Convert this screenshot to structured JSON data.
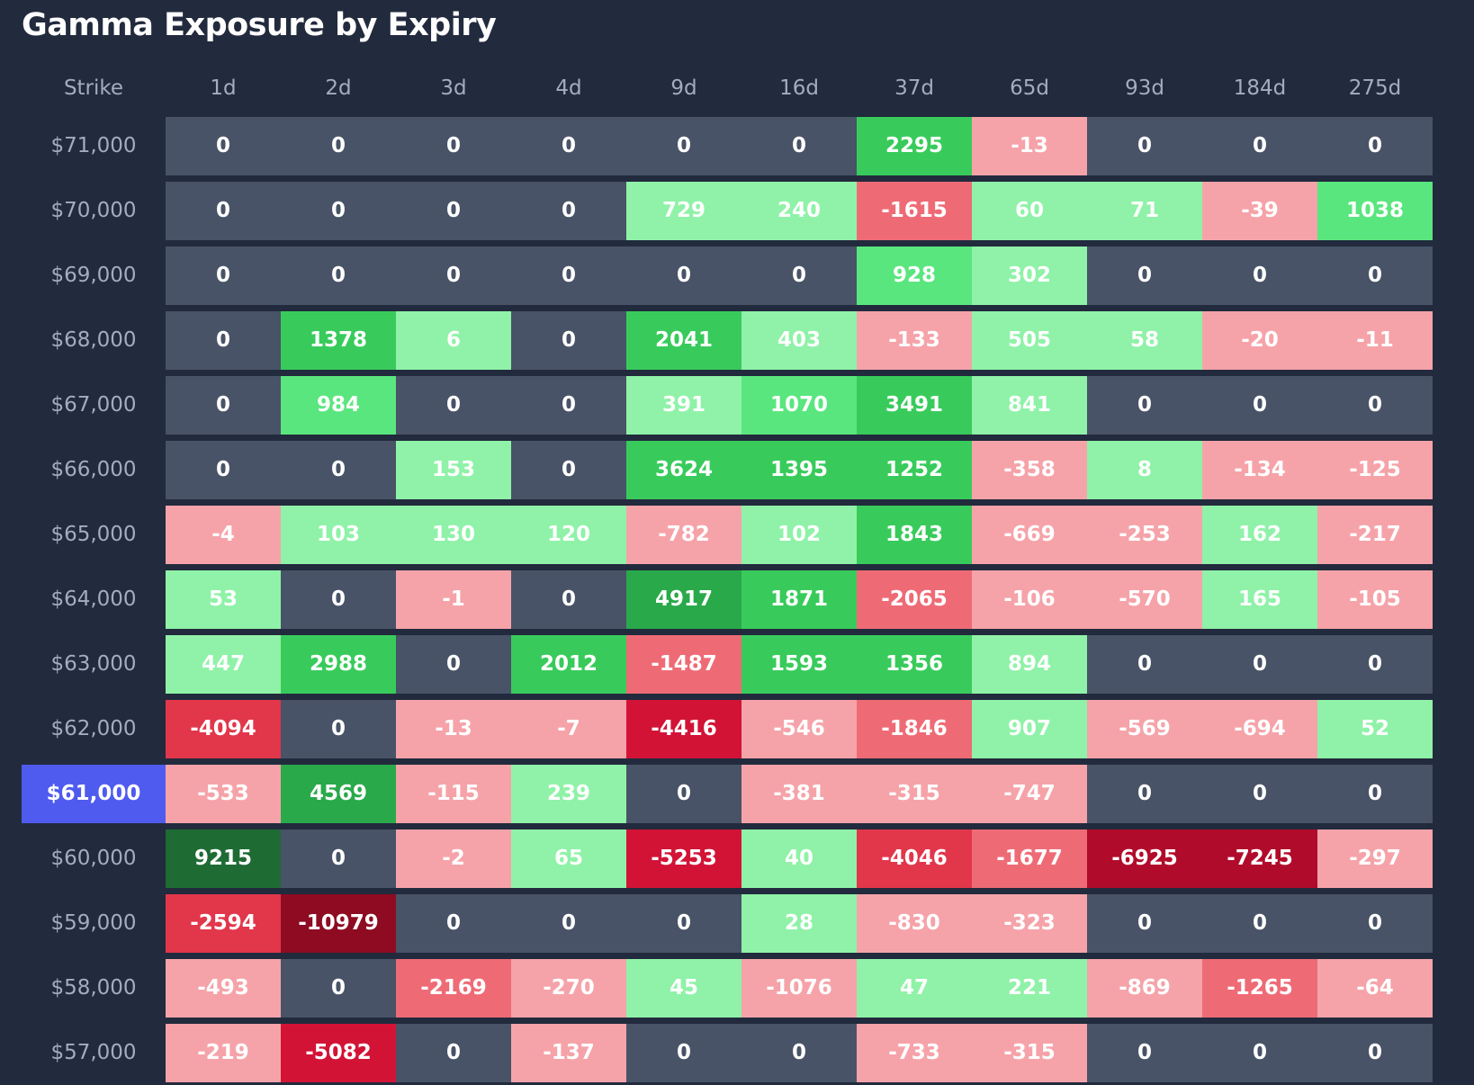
{
  "title": "Gamma Exposure by Expiry",
  "table": {
    "strike_header": "Strike",
    "columns": [
      "1d",
      "2d",
      "3d",
      "4d",
      "9d",
      "16d",
      "37d",
      "65d",
      "93d",
      "184d",
      "275d"
    ],
    "rows": [
      {
        "strike": "$71,000",
        "cells": [
          0,
          0,
          0,
          0,
          0,
          0,
          2295,
          -13,
          0,
          0,
          0
        ]
      },
      {
        "strike": "$70,000",
        "cells": [
          0,
          0,
          0,
          0,
          729,
          240,
          -1615,
          60,
          71,
          -39,
          1038
        ]
      },
      {
        "strike": "$69,000",
        "cells": [
          0,
          0,
          0,
          0,
          0,
          0,
          928,
          302,
          0,
          0,
          0
        ]
      },
      {
        "strike": "$68,000",
        "cells": [
          0,
          1378,
          6,
          0,
          2041,
          403,
          -133,
          505,
          58,
          -20,
          -11
        ]
      },
      {
        "strike": "$67,000",
        "cells": [
          0,
          984,
          0,
          0,
          391,
          1070,
          3491,
          841,
          0,
          0,
          0
        ]
      },
      {
        "strike": "$66,000",
        "cells": [
          0,
          0,
          153,
          0,
          3624,
          1395,
          1252,
          -358,
          8,
          -134,
          -125
        ]
      },
      {
        "strike": "$65,000",
        "cells": [
          -4,
          103,
          130,
          120,
          -782,
          102,
          1843,
          -669,
          -253,
          162,
          -217
        ]
      },
      {
        "strike": "$64,000",
        "cells": [
          53,
          0,
          -1,
          0,
          4917,
          1871,
          -2065,
          -106,
          -570,
          165,
          -105
        ]
      },
      {
        "strike": "$63,000",
        "cells": [
          447,
          2988,
          0,
          2012,
          -1487,
          1593,
          1356,
          894,
          0,
          0,
          0
        ]
      },
      {
        "strike": "$62,000",
        "cells": [
          -4094,
          0,
          -13,
          -7,
          -4416,
          -546,
          -1846,
          907,
          -569,
          -694,
          52
        ]
      },
      {
        "strike": "$61,000",
        "highlighted": true,
        "cells": [
          -533,
          4569,
          -115,
          239,
          0,
          -381,
          -315,
          -747,
          0,
          0,
          0
        ]
      },
      {
        "strike": "$60,000",
        "cells": [
          9215,
          0,
          -2,
          65,
          -5253,
          40,
          -4046,
          -1677,
          -6925,
          -7245,
          -297
        ]
      },
      {
        "strike": "$59,000",
        "cells": [
          -2594,
          -10979,
          0,
          0,
          0,
          28,
          -830,
          -323,
          0,
          0,
          0
        ]
      },
      {
        "strike": "$58,000",
        "cells": [
          -493,
          0,
          -2169,
          -270,
          45,
          -1076,
          47,
          221,
          -869,
          -1265,
          -64
        ]
      },
      {
        "strike": "$57,000",
        "cells": [
          -219,
          -5082,
          0,
          -137,
          0,
          0,
          -733,
          -315,
          0,
          0,
          0
        ]
      }
    ]
  }
}
